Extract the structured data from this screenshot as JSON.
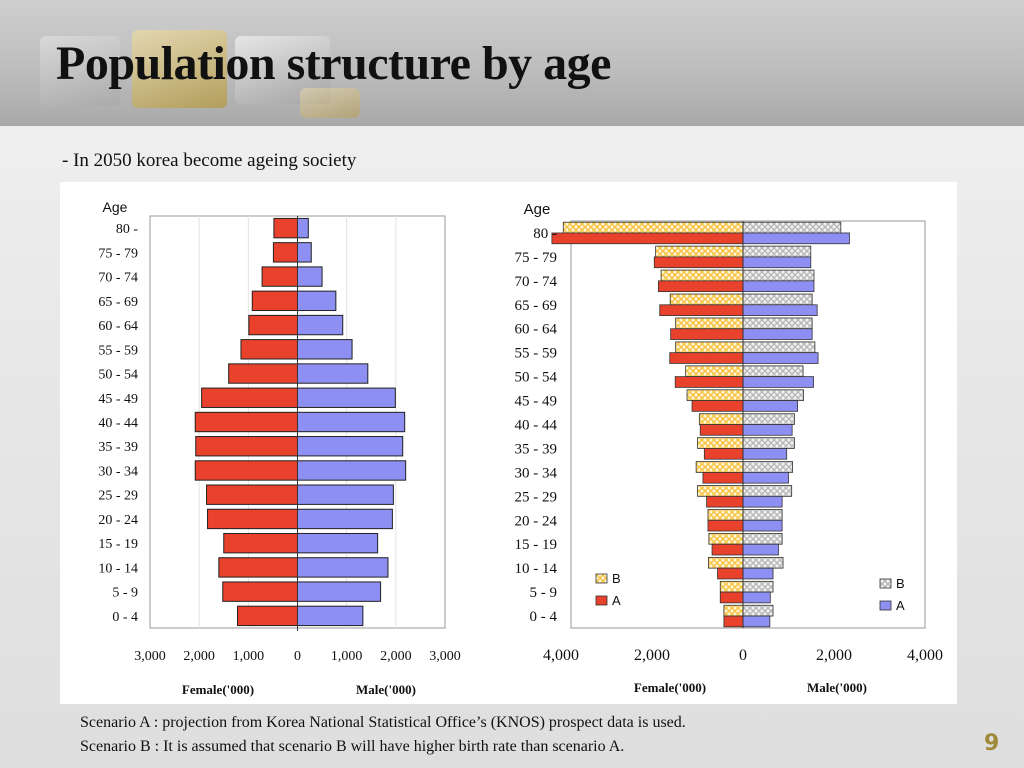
{
  "slide": {
    "title": "Population structure by age",
    "subtitle": "- In 2050 korea become ageing society",
    "notes": [
      "Scenario A : projection from Korea National Statistical Office’s (KNOS) prospect data is used.",
      "Scenario B : It is assumed that scenario B will have higher birth rate than scenario A."
    ],
    "page_number": "9"
  },
  "colors": {
    "female": "#e8412c",
    "male": "#8d8ff2",
    "pattern_b": "#f5c242",
    "pattern_b_male": "#c8c8c8",
    "header_bg": "#bdbdbd",
    "page_number": "#a08a3a"
  },
  "chart_data": [
    {
      "type": "bar",
      "orientation": "horizontal",
      "subtype": "population-pyramid",
      "ylabel": "Age",
      "categories": [
        "0 - 4",
        "5 - 9",
        "10 - 14",
        "15 - 19",
        "20 - 24",
        "25 - 29",
        "30 - 34",
        "35 - 39",
        "40 - 44",
        "45 - 49",
        "50 - 54",
        "55 - 59",
        "60 - 64",
        "65 - 69",
        "70 - 74",
        "75 - 79",
        "80 -"
      ],
      "x_tick_labels": [
        "3,000",
        "2,000",
        "1,000",
        "0",
        "1,000",
        "2,000",
        "3,000"
      ],
      "xlim": [
        -3000,
        3000
      ],
      "female_label": "Female('000)",
      "male_label": "Male('000)",
      "series": [
        {
          "side": "female",
          "values": [
            1220,
            1520,
            1600,
            1500,
            1830,
            1850,
            2080,
            2070,
            2080,
            1950,
            1400,
            1150,
            990,
            920,
            720,
            490,
            480
          ]
        },
        {
          "side": "male",
          "values": [
            1330,
            1690,
            1840,
            1630,
            1930,
            1950,
            2200,
            2140,
            2180,
            1990,
            1430,
            1110,
            920,
            780,
            500,
            280,
            220
          ]
        }
      ],
      "grid": true,
      "legend": "none"
    },
    {
      "type": "bar",
      "orientation": "horizontal",
      "subtype": "population-pyramid",
      "ylabel": "Age",
      "categories": [
        "0 - 4",
        "5 - 9",
        "10 - 14",
        "15 - 19",
        "20 - 24",
        "25 - 29",
        "30 - 34",
        "35 - 39",
        "40 - 44",
        "45 - 49",
        "50 - 54",
        "55 - 59",
        "60 - 64",
        "65 - 69",
        "70 - 74",
        "75 - 79",
        "80 -"
      ],
      "x_tick_labels": [
        "4,000",
        "2,000",
        "0",
        "2,000",
        "4,000"
      ],
      "xlim": [
        -4000,
        4000
      ],
      "female_label": "Female('000)",
      "male_label": "Male('000)",
      "series": [
        {
          "name": "B",
          "side": "female",
          "values": [
            420,
            500,
            760,
            750,
            770,
            1000,
            1030,
            1000,
            960,
            1230,
            1260,
            1480,
            1480,
            1600,
            1800,
            1920,
            3950
          ]
        },
        {
          "name": "A",
          "side": "female",
          "values": [
            420,
            500,
            560,
            680,
            770,
            800,
            880,
            850,
            940,
            1120,
            1490,
            1610,
            1590,
            1830,
            1860,
            1950,
            4200
          ]
        },
        {
          "name": "B",
          "side": "male",
          "values": [
            660,
            660,
            880,
            860,
            860,
            1070,
            1090,
            1130,
            1130,
            1330,
            1320,
            1580,
            1520,
            1520,
            1560,
            1490,
            2150
          ]
        },
        {
          "name": "A",
          "side": "male",
          "values": [
            590,
            600,
            660,
            780,
            860,
            860,
            1000,
            960,
            1080,
            1200,
            1550,
            1650,
            1520,
            1630,
            1560,
            1490,
            2340
          ]
        }
      ],
      "legend_labels": [
        "B",
        "A"
      ],
      "grid": false,
      "legend": "bottom-left and bottom-right"
    }
  ]
}
